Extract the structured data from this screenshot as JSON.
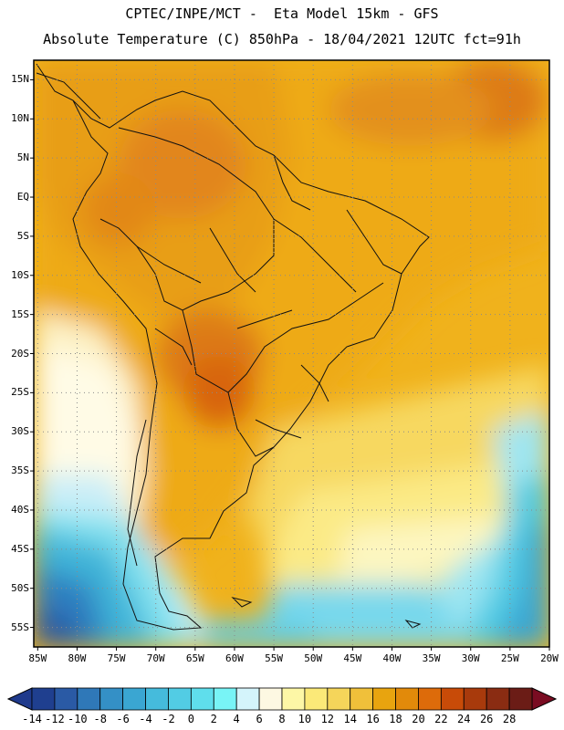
{
  "header": {
    "line1": "CPTEC/INPE/MCT -  Eta Model 15km - GFS",
    "line2": "Absolute Temperature (C) 850hPa - 18/04/2021 12UTC fct=91h"
  },
  "map": {
    "lat_labels": [
      "15N",
      "10N",
      "5N",
      "EQ",
      "5S",
      "10S",
      "15S",
      "20S",
      "25S",
      "30S",
      "35S",
      "40S",
      "45S",
      "50S",
      "55S"
    ],
    "lon_labels": [
      "85W",
      "80W",
      "75W",
      "70W",
      "65W",
      "60W",
      "55W",
      "50W",
      "45W",
      "40W",
      "35W",
      "30W",
      "25W",
      "20W"
    ],
    "lat_range": [
      17.5,
      -57.5
    ],
    "lon_range": [
      -85.5,
      -20
    ]
  },
  "colorbar": {
    "labels": [
      "-14",
      "-12",
      "-10",
      "-8",
      "-6",
      "-4",
      "-2",
      "0",
      "2",
      "4",
      "6",
      "8",
      "10",
      "12",
      "14",
      "16",
      "18",
      "20",
      "22",
      "24",
      "26",
      "28"
    ],
    "colors": [
      "#1f3f8f",
      "#2a5aa5",
      "#2f78b8",
      "#3490c6",
      "#3aa6d2",
      "#45bbdc",
      "#52ccE4",
      "#5fdeec",
      "#78f4f6",
      "#d4f4fb",
      "#fdf8e2",
      "#fdf7a6",
      "#fbe978",
      "#f5d55a",
      "#f0c03a",
      "#e8a40f",
      "#e28a0a",
      "#dd6b0a",
      "#c84b08",
      "#a83a0c",
      "#8a2c12",
      "#6b1c16"
    ],
    "under_color": "#1f3a8c",
    "over_color": "#7a0c22"
  }
}
